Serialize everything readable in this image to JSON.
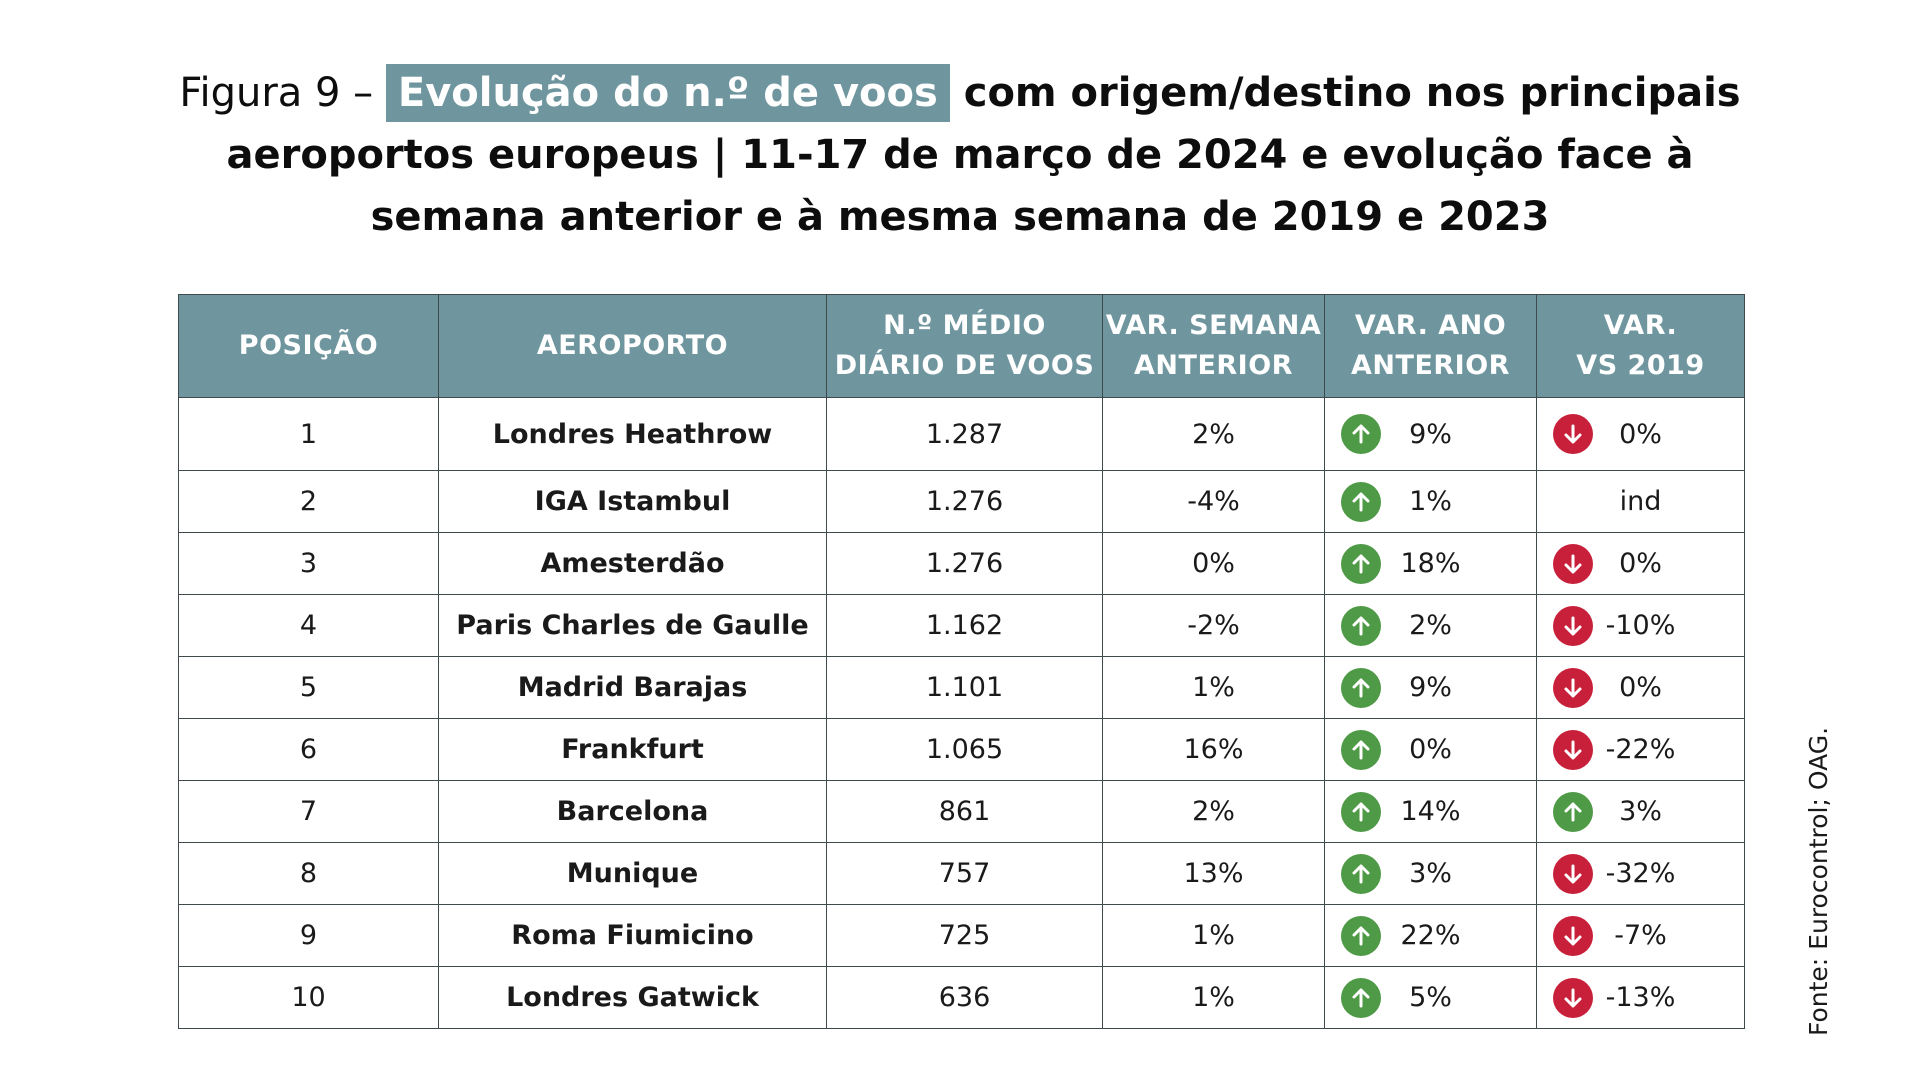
{
  "title": {
    "prefix": "Figura 9 – ",
    "highlight": "Evolução do n.º de voos",
    "line1_rest": " com origem/destino nos principais",
    "line2": "aeroportos europeus | 11-17 de março de 2024 e evolução face à",
    "line3": "semana anterior e à mesma semana de 2019 e 2023"
  },
  "headers": {
    "position": "POSIÇÃO",
    "airport": "AEROPORTO",
    "avg_1": "N.º MÉDIO",
    "avg_2": "DIÁRIO DE VOOS",
    "week_1": "VAR. SEMANA",
    "week_2": "ANTERIOR",
    "year_1": "VAR. ANO",
    "year_2": "ANTERIOR",
    "v2019_1": "VAR.",
    "v2019_2": "VS 2019"
  },
  "colors": {
    "header_bg": "#6f969e",
    "arrow_up": "#4f9a46",
    "arrow_down": "#c8203a"
  },
  "rows": [
    {
      "pos": "1",
      "airport": "Londres Heathrow",
      "avg": "1.287",
      "week": "2%",
      "year": "9%",
      "year_icon": "arrow-up-icon",
      "v2019": "0%",
      "v2019_icon": "arrow-down-icon"
    },
    {
      "pos": "2",
      "airport": "IGA Istambul",
      "avg": "1.276",
      "week": "-4%",
      "year": "1%",
      "year_icon": "arrow-up-icon",
      "v2019": "ind",
      "v2019_icon": ""
    },
    {
      "pos": "3",
      "airport": "Amesterdão",
      "avg": "1.276",
      "week": "0%",
      "year": "18%",
      "year_icon": "arrow-up-icon",
      "v2019": "0%",
      "v2019_icon": "arrow-down-icon"
    },
    {
      "pos": "4",
      "airport": "Paris Charles de Gaulle",
      "avg": "1.162",
      "week": "-2%",
      "year": "2%",
      "year_icon": "arrow-up-icon",
      "v2019": "-10%",
      "v2019_icon": "arrow-down-icon"
    },
    {
      "pos": "5",
      "airport": "Madrid Barajas",
      "avg": "1.101",
      "week": "1%",
      "year": "9%",
      "year_icon": "arrow-up-icon",
      "v2019": "0%",
      "v2019_icon": "arrow-down-icon"
    },
    {
      "pos": "6",
      "airport": "Frankfurt",
      "avg": "1.065",
      "week": "16%",
      "year": "0%",
      "year_icon": "arrow-up-icon",
      "v2019": "-22%",
      "v2019_icon": "arrow-down-icon"
    },
    {
      "pos": "7",
      "airport": "Barcelona",
      "avg": "861",
      "week": "2%",
      "year": "14%",
      "year_icon": "arrow-up-icon",
      "v2019": "3%",
      "v2019_icon": "arrow-up-icon"
    },
    {
      "pos": "8",
      "airport": "Munique",
      "avg": "757",
      "week": "13%",
      "year": "3%",
      "year_icon": "arrow-up-icon",
      "v2019": "-32%",
      "v2019_icon": "arrow-down-icon"
    },
    {
      "pos": "9",
      "airport": "Roma Fiumicino",
      "avg": "725",
      "week": "1%",
      "year": "22%",
      "year_icon": "arrow-up-icon",
      "v2019": "-7%",
      "v2019_icon": "arrow-down-icon"
    },
    {
      "pos": "10",
      "airport": "Londres Gatwick",
      "avg": "636",
      "week": "1%",
      "year": "5%",
      "year_icon": "arrow-up-icon",
      "v2019": "-13%",
      "v2019_icon": "arrow-down-icon"
    }
  ],
  "source": "Fonte: Eurocontrol; OAG."
}
